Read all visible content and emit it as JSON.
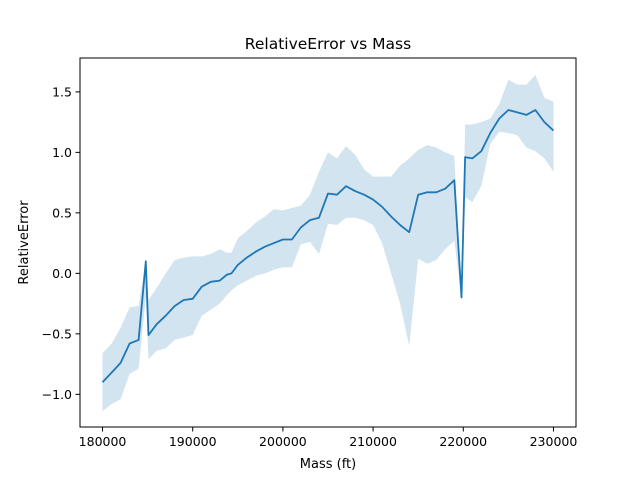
{
  "chart_data": {
    "type": "line",
    "title": "RelativeError vs Mass",
    "xlabel": "Mass (ft)",
    "ylabel": "RelativeError",
    "xlim": [
      177500,
      232500
    ],
    "ylim": [
      -1.27,
      1.78
    ],
    "xticks": [
      180000,
      190000,
      200000,
      210000,
      220000,
      230000
    ],
    "xtick_labels": [
      "180000",
      "190000",
      "200000",
      "210000",
      "220000",
      "230000"
    ],
    "yticks": [
      -1.0,
      -0.5,
      0.0,
      0.5,
      1.0,
      1.5
    ],
    "ytick_labels": [
      "−1.0",
      "−0.5",
      "0.0",
      "0.5",
      "1.0",
      "1.5"
    ],
    "grid": false,
    "line_color": "#1f77b4",
    "band_color": "#1f77b4",
    "series": [
      {
        "x": [
          180000,
          181000,
          182000,
          183000,
          184000,
          184800,
          185100,
          186000,
          187000,
          188000,
          189000,
          190000,
          191000,
          192000,
          193000,
          193800,
          194300,
          195000,
          196000,
          197000,
          198000,
          199000,
          200000,
          201000,
          202000,
          203000,
          204000,
          205000,
          206000,
          207000,
          208000,
          209000,
          210000,
          211000,
          212000,
          213000,
          214000,
          215000,
          216000,
          217000,
          218000,
          219000,
          219800,
          220200,
          221000,
          222000,
          223000,
          224000,
          225000,
          226000,
          227000,
          228000,
          229000,
          230000
        ],
        "y": [
          -0.9,
          -0.82,
          -0.74,
          -0.58,
          -0.55,
          0.1,
          -0.51,
          -0.42,
          -0.35,
          -0.27,
          -0.22,
          -0.21,
          -0.11,
          -0.07,
          -0.06,
          -0.01,
          0.0,
          0.07,
          0.13,
          0.18,
          0.22,
          0.25,
          0.28,
          0.28,
          0.38,
          0.44,
          0.46,
          0.66,
          0.65,
          0.72,
          0.68,
          0.65,
          0.61,
          0.55,
          0.47,
          0.4,
          0.34,
          0.65,
          0.67,
          0.67,
          0.7,
          0.77,
          -0.2,
          0.96,
          0.95,
          1.01,
          1.16,
          1.28,
          1.35,
          1.33,
          1.31,
          1.35,
          1.25,
          1.18
        ],
        "lower": [
          -1.14,
          -1.08,
          -1.04,
          -0.83,
          -0.79,
          -0.2,
          -0.71,
          -0.64,
          -0.62,
          -0.55,
          -0.53,
          -0.51,
          -0.35,
          -0.3,
          -0.25,
          -0.18,
          -0.14,
          -0.1,
          -0.06,
          -0.02,
          0.0,
          0.03,
          0.05,
          0.05,
          0.24,
          0.26,
          0.16,
          0.41,
          0.4,
          0.46,
          0.46,
          0.44,
          0.4,
          0.25,
          0.0,
          -0.25,
          -0.6,
          0.12,
          0.08,
          0.11,
          0.2,
          0.27,
          -0.2,
          0.63,
          0.59,
          0.72,
          1.07,
          1.17,
          1.16,
          1.14,
          1.04,
          1.01,
          0.95,
          0.84
        ],
        "upper": [
          -0.66,
          -0.58,
          -0.45,
          -0.28,
          -0.27,
          0.1,
          -0.22,
          -0.12,
          0.0,
          0.11,
          0.13,
          0.14,
          0.14,
          0.16,
          0.2,
          0.17,
          0.17,
          0.29,
          0.35,
          0.42,
          0.47,
          0.53,
          0.52,
          0.54,
          0.56,
          0.65,
          0.84,
          1.0,
          0.95,
          1.05,
          0.98,
          0.86,
          0.8,
          0.8,
          0.8,
          0.89,
          0.95,
          1.02,
          1.06,
          1.04,
          1.0,
          0.97,
          -0.2,
          1.23,
          1.23,
          1.25,
          1.28,
          1.4,
          1.6,
          1.56,
          1.56,
          1.64,
          1.45,
          1.42
        ]
      }
    ]
  }
}
